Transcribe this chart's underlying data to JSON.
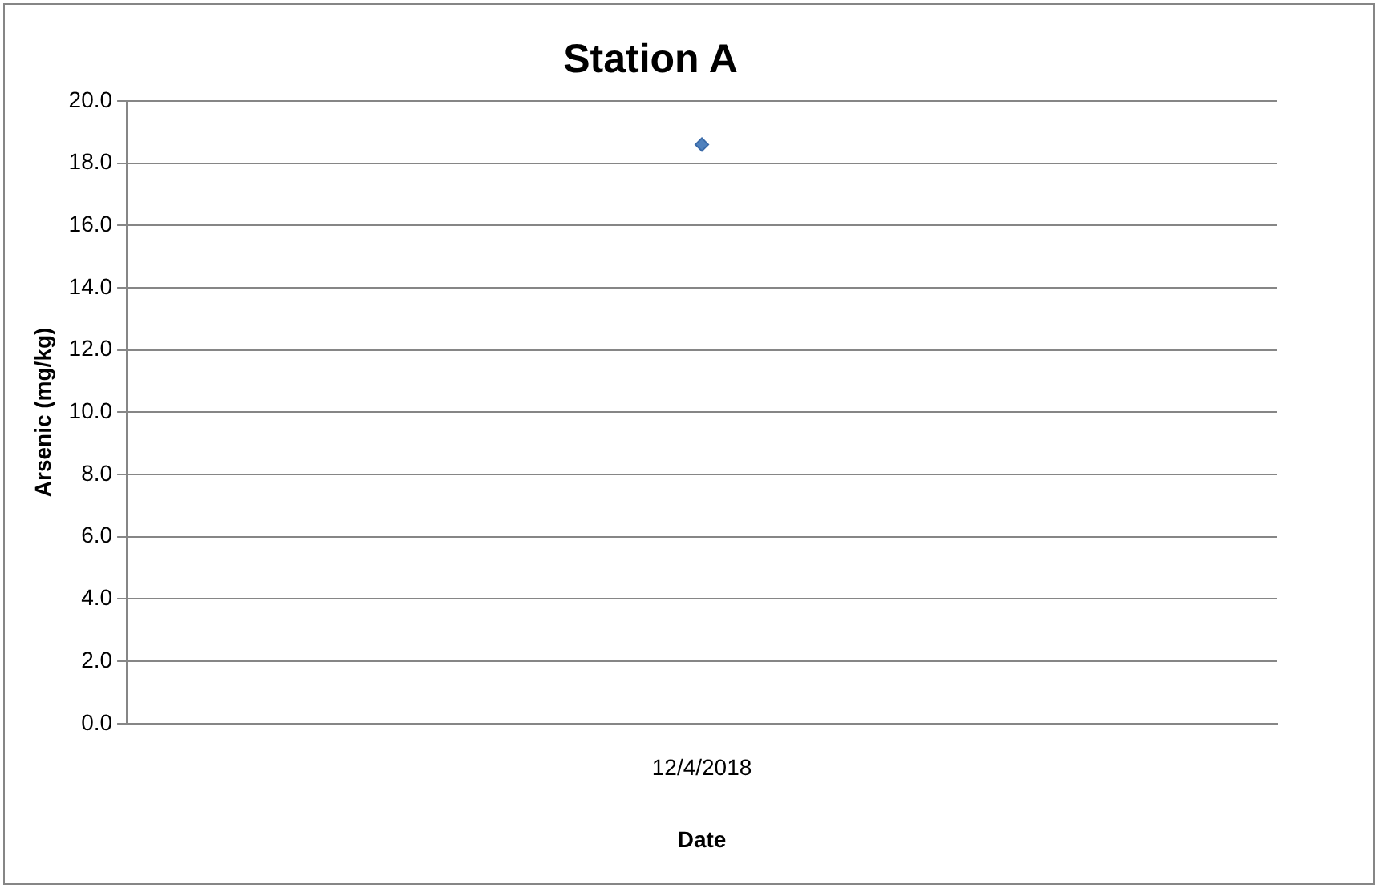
{
  "chart_data": {
    "type": "scatter",
    "title": "Station A",
    "xlabel": "Date",
    "ylabel": "Arsenic (mg/kg)",
    "categories": [
      "12/4/2018"
    ],
    "series": [
      {
        "color": "#4f81bd",
        "values": [
          18.6
        ]
      }
    ],
    "ylim": [
      0,
      20
    ],
    "yticks": [
      {
        "value": 0,
        "label": "0.0"
      },
      {
        "value": 2,
        "label": "2.0"
      },
      {
        "value": 4,
        "label": "4.0"
      },
      {
        "value": 6,
        "label": "6.0"
      },
      {
        "value": 8,
        "label": "8.0"
      },
      {
        "value": 10,
        "label": "10.0"
      },
      {
        "value": 12,
        "label": "12.0"
      },
      {
        "value": 14,
        "label": "14.0"
      },
      {
        "value": 16,
        "label": "16.0"
      },
      {
        "value": 18,
        "label": "18.0"
      },
      {
        "value": 20,
        "label": "20.0"
      }
    ],
    "grid": "y",
    "legend": false,
    "marker": "diamond"
  }
}
